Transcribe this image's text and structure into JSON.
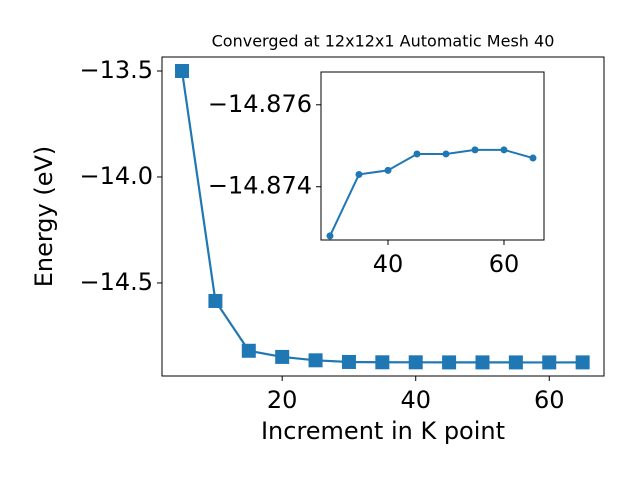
{
  "chart_data": [
    {
      "type": "line",
      "marker": "square",
      "title": "Converged at 12x12x1 Automatic Mesh 40",
      "x_label": "Increment in K point",
      "y_label": "Energy (eV)",
      "x": [
        5,
        10,
        15,
        20,
        25,
        30,
        35,
        40,
        45,
        50,
        55,
        60,
        65
      ],
      "series": [
        {
          "name": "Energy",
          "color": "#1f77b4",
          "values": [
            -13.5,
            -14.585,
            -14.82,
            -14.849,
            -14.865,
            -14.8728,
            -14.8743,
            -14.8744,
            -14.8748,
            -14.8748,
            -14.8749,
            -14.8749,
            -14.8747
          ]
        }
      ],
      "xlim": [
        2.0,
        68.2
      ],
      "ylim": [
        -14.939,
        -13.434
      ],
      "xticks": [
        20,
        40,
        60
      ],
      "yticks": [
        {
          "value": -13.5,
          "label": "−13.5"
        },
        {
          "value": -14.0,
          "label": "−14.0"
        },
        {
          "value": -14.5,
          "label": "−14.5"
        }
      ]
    },
    {
      "type": "line",
      "marker": "circle",
      "x": [
        30,
        35,
        40,
        45,
        50,
        55,
        60,
        65
      ],
      "series": [
        {
          "name": "Energy",
          "color": "#1f77b4",
          "values": [
            -14.8728,
            -14.8743,
            -14.8744,
            -14.8748,
            -14.8748,
            -14.8749,
            -14.8749,
            -14.8747
          ]
        }
      ],
      "xlim": [
        28.45,
        66.9
      ],
      "ylim": [
        -14.8727,
        -14.8768
      ],
      "xticks": [
        40,
        60
      ],
      "yticks": [
        {
          "value": -14.876,
          "label": "−14.876"
        },
        {
          "value": -14.874,
          "label": "−14.874"
        }
      ]
    }
  ]
}
